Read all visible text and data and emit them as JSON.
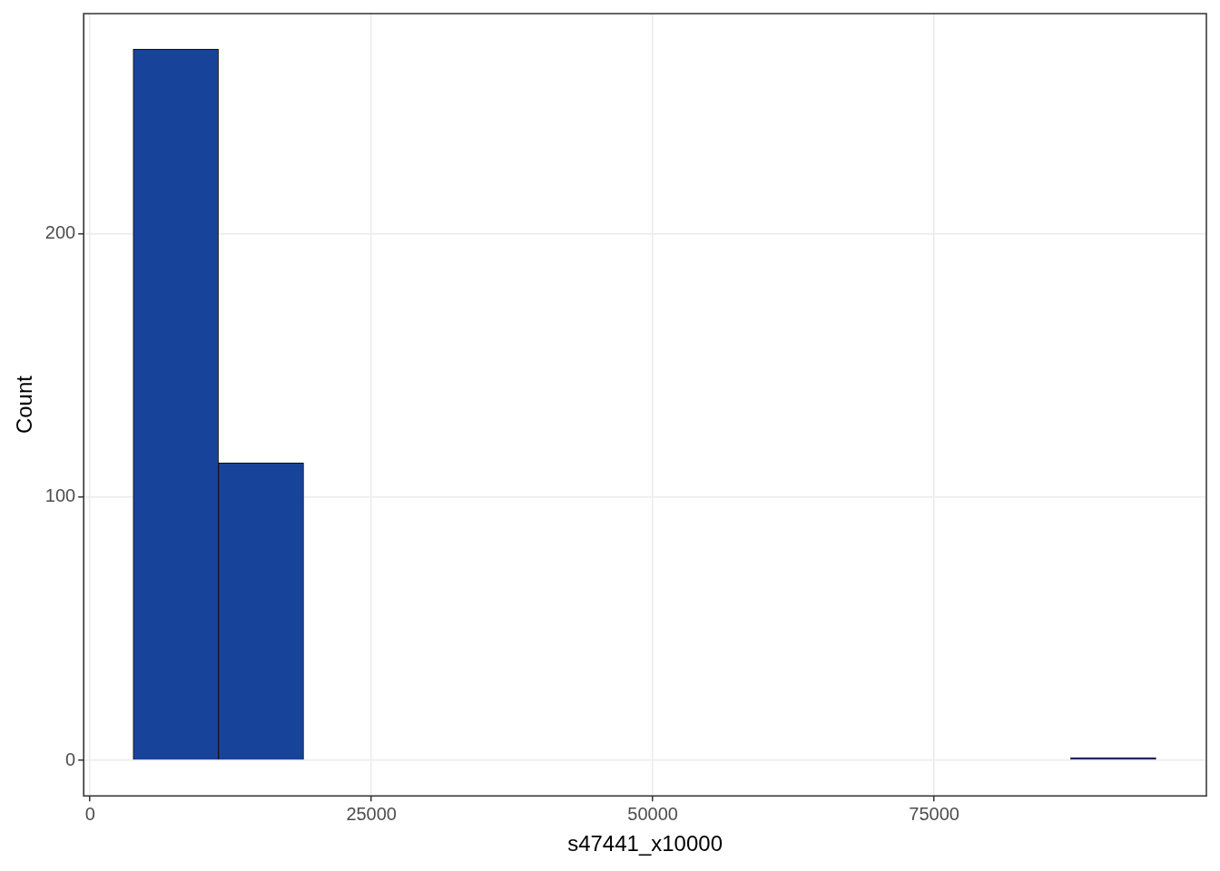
{
  "chart_data": {
    "type": "histogram",
    "xlabel": "s47441_x10000",
    "ylabel": "Count",
    "bins": [
      3827,
      11400,
      18973,
      26546,
      34119,
      41692,
      49265,
      56838,
      64411,
      71984,
      79557,
      87130,
      94703
    ],
    "values": [
      270,
      113,
      0,
      0,
      0,
      0,
      0,
      0,
      0,
      0,
      0,
      1
    ],
    "color": "#17439b",
    "xlim": [
      -570,
      99190
    ],
    "ylim": [
      -13.5,
      283.5
    ],
    "xticks": [
      0,
      25000,
      50000,
      75000
    ],
    "yticks": [
      0,
      100,
      200
    ],
    "grid": true,
    "legend": false
  }
}
